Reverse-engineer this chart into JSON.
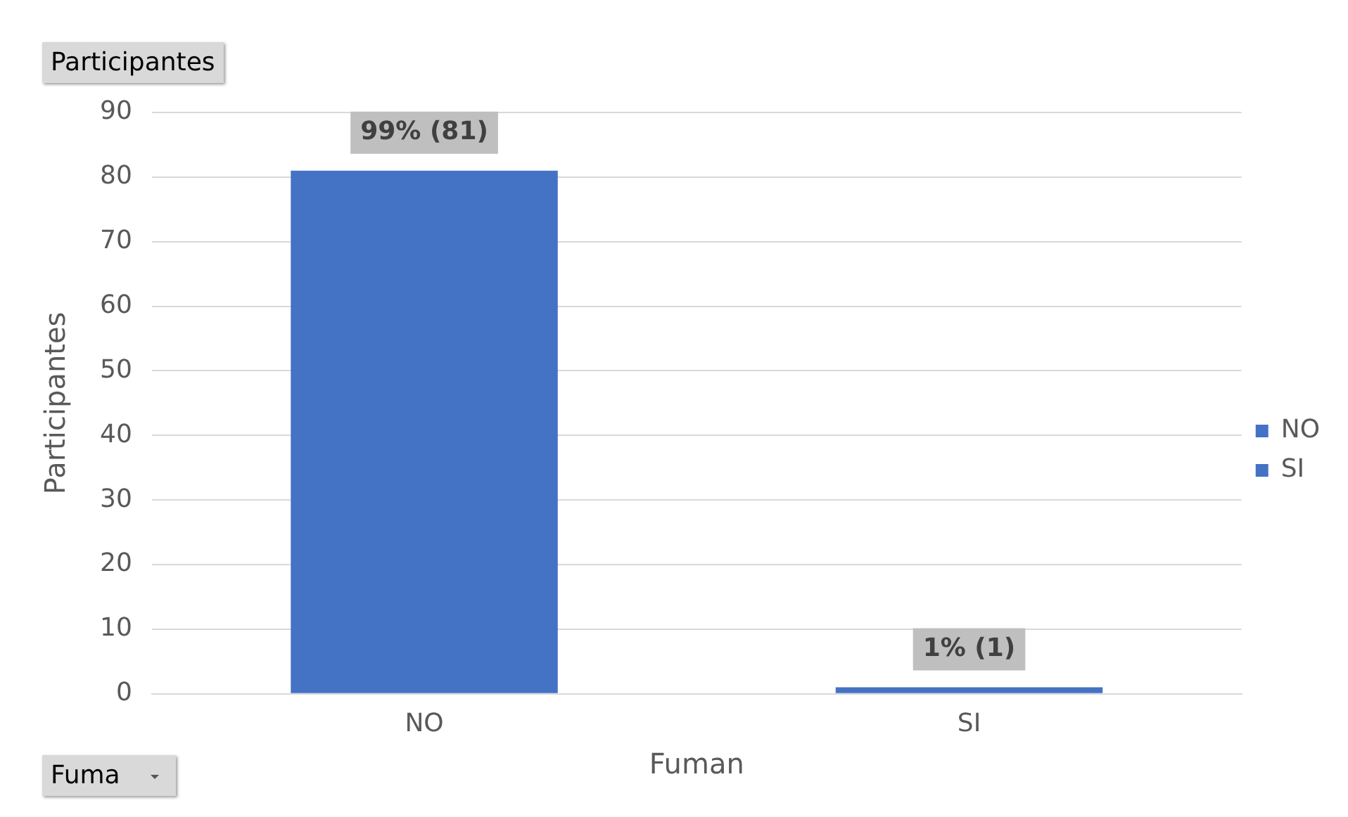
{
  "chart_data": {
    "type": "bar",
    "xlabel": "Fuman",
    "ylabel": "Participantes",
    "categories": [
      "NO",
      "SI"
    ],
    "stacked": true,
    "series": [
      {
        "name": "NO",
        "color": "#4472c4",
        "values": [
          81,
          null
        ],
        "value_labels": [
          "99% (81)",
          null
        ]
      },
      {
        "name": "SI",
        "color": "#4472c4",
        "values": [
          null,
          1
        ],
        "value_labels": [
          null,
          "1% (1)"
        ]
      }
    ],
    "ylim": [
      0,
      90
    ],
    "yticks": [
      0,
      10,
      20,
      30,
      40,
      50,
      60,
      70,
      80,
      90
    ],
    "grid": "y",
    "legend": "right",
    "annotations": [
      "Participantes",
      "Fuma"
    ]
  }
}
